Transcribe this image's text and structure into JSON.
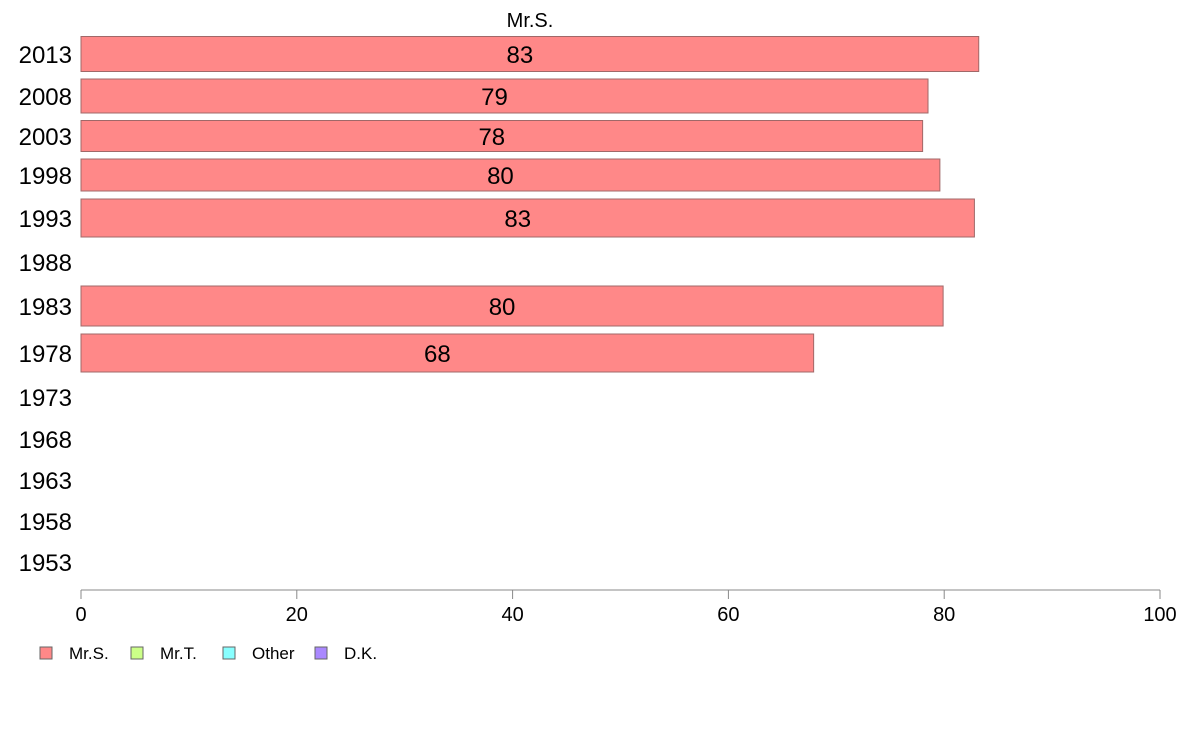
{
  "chart_data": {
    "type": "bar",
    "orientation": "horizontal",
    "title": "Mr.S.",
    "xlabel": "",
    "ylabel": "",
    "xlim": [
      0,
      100
    ],
    "x_ticks": [
      0,
      20,
      40,
      60,
      80,
      100
    ],
    "grid": false,
    "legend_position": "bottom-left",
    "categories": [
      "2013",
      "2008",
      "2003",
      "1998",
      "1993",
      "1988",
      "1983",
      "1978",
      "1973",
      "1968",
      "1963",
      "1958",
      "1953"
    ],
    "series": [
      {
        "name": "Mr.S.",
        "color": "#ff8888",
        "values": [
          83.2,
          78.5,
          78.0,
          79.6,
          82.8,
          null,
          79.9,
          67.9,
          null,
          null,
          null,
          null,
          null
        ],
        "labels": [
          "83",
          "79",
          "78",
          "80",
          "83",
          "",
          "80",
          "68",
          "",
          "",
          "",
          "",
          ""
        ]
      }
    ],
    "legend": [
      {
        "name": "Mr.S.",
        "color": "#ff8888"
      },
      {
        "name": "Mr.T.",
        "color": "#ccff88"
      },
      {
        "name": "Other",
        "color": "#88ffff"
      },
      {
        "name": "D.K.",
        "color": "#aa88ff"
      }
    ]
  }
}
